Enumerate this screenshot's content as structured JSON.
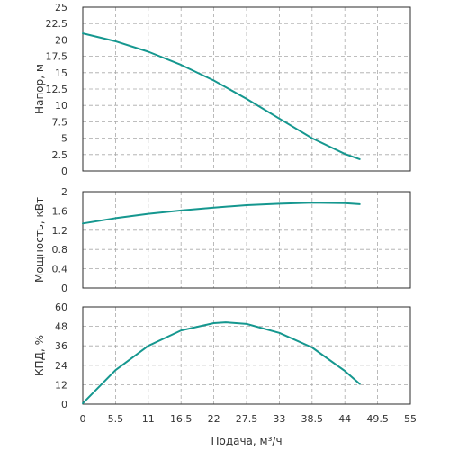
{
  "chart_data": [
    {
      "type": "line",
      "ylabel": "Напор, м",
      "xlabel": "",
      "xlim": [
        0,
        55
      ],
      "ylim": [
        0,
        25
      ],
      "xticks": [
        "0",
        "5.5",
        "11",
        "16.5",
        "22",
        "27.5",
        "33",
        "38.5",
        "44",
        "49.5",
        "55"
      ],
      "yticks": [
        "0",
        "2.5",
        "5",
        "7.5",
        "10",
        "12.5",
        "15",
        "17.5",
        "20",
        "22.5",
        "25"
      ],
      "show_xtick_labels": false,
      "grid": true,
      "color": "#15978f",
      "series": [
        {
          "x": [
            0,
            5.5,
            11,
            16.5,
            22,
            27.5,
            33,
            38.5,
            44,
            46.5
          ],
          "y": [
            21,
            19.8,
            18.2,
            16.2,
            13.8,
            11.0,
            8.0,
            5.0,
            2.6,
            1.8
          ]
        }
      ]
    },
    {
      "type": "line",
      "ylabel": "Мощность, кВт",
      "xlabel": "",
      "xlim": [
        0,
        55
      ],
      "ylim": [
        0,
        2
      ],
      "xticks": [
        "0",
        "5.5",
        "11",
        "16.5",
        "22",
        "27.5",
        "33",
        "38.5",
        "44",
        "49.5",
        "55"
      ],
      "yticks": [
        "0",
        "0.4",
        "0.8",
        "1.2",
        "1.6",
        "2"
      ],
      "show_xtick_labels": false,
      "grid": true,
      "color": "#15978f",
      "series": [
        {
          "x": [
            0,
            5.5,
            11,
            16.5,
            22,
            27.5,
            33,
            38.5,
            44,
            46.5
          ],
          "y": [
            1.34,
            1.45,
            1.54,
            1.61,
            1.67,
            1.72,
            1.75,
            1.77,
            1.76,
            1.74
          ]
        }
      ]
    },
    {
      "type": "line",
      "ylabel": "КПД, %",
      "xlabel": "Подача, м³/ч",
      "xlim": [
        0,
        55
      ],
      "ylim": [
        0,
        60
      ],
      "xticks": [
        "0",
        "5.5",
        "11",
        "16.5",
        "22",
        "27.5",
        "33",
        "38.5",
        "44",
        "49.5",
        "55"
      ],
      "yticks": [
        "0",
        "12",
        "24",
        "36",
        "48",
        "60"
      ],
      "show_xtick_labels": true,
      "grid": true,
      "color": "#15978f",
      "series": [
        {
          "x": [
            0,
            5.5,
            11,
            16.5,
            22,
            24,
            27.5,
            33,
            38.5,
            44,
            46.5
          ],
          "y": [
            0.5,
            21,
            36,
            45.5,
            50,
            50.5,
            49.5,
            44,
            35,
            20.5,
            12.5
          ]
        }
      ]
    }
  ]
}
